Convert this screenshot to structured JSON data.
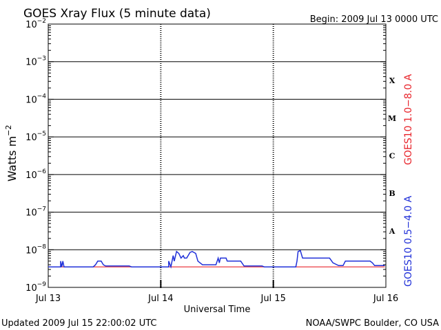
{
  "chart_data": {
    "type": "line",
    "title": "GOES Xray Flux (5 minute data)",
    "begin_text": "Begin:  2009 Jul 13 0000 UTC",
    "xlabel": "Universal Time",
    "ylabel": "Watts m",
    "ylabel_sup": "−2",
    "yscale": "log",
    "ylim": [
      1e-09,
      0.01
    ],
    "xlim_days": [
      0,
      3
    ],
    "x_ticks": [
      {
        "label": "Jul 13",
        "day": 0
      },
      {
        "label": "Jul 14",
        "day": 1
      },
      {
        "label": "Jul 15",
        "day": 2
      },
      {
        "label": "Jul 16",
        "day": 3
      }
    ],
    "y_ticks": [
      {
        "base": "10",
        "exp": "−9",
        "value": 1e-09
      },
      {
        "base": "10",
        "exp": "−8",
        "value": 1e-08
      },
      {
        "base": "10",
        "exp": "−7",
        "value": 1e-07
      },
      {
        "base": "10",
        "exp": "−6",
        "value": 1e-06
      },
      {
        "base": "10",
        "exp": "−5",
        "value": 1e-05
      },
      {
        "base": "10",
        "exp": "−4",
        "value": 0.0001
      },
      {
        "base": "10",
        "exp": "−3",
        "value": 0.001
      },
      {
        "base": "10",
        "exp": "−2",
        "value": 0.01
      }
    ],
    "flare_classes": [
      {
        "label": "A",
        "low": 1e-08,
        "high": 1e-07
      },
      {
        "label": "B",
        "low": 1e-07,
        "high": 1e-06
      },
      {
        "label": "C",
        "low": 1e-06,
        "high": 1e-05
      },
      {
        "label": "M",
        "low": 1e-05,
        "high": 0.0001
      },
      {
        "label": "X",
        "low": 0.0001,
        "high": 0.001
      }
    ],
    "series": [
      {
        "name": "GOES10 1.0−8.0 A",
        "color": "#e8242b",
        "points": [
          [
            0.0,
            3.5e-09
          ],
          [
            2.99,
            3.5e-09
          ]
        ]
      },
      {
        "name": "GOES10 0.5−4.0 A",
        "color": "#1f2fd8",
        "points": [
          [
            0.0,
            3.5e-09
          ],
          [
            0.11,
            3.5e-09
          ],
          [
            0.11,
            5e-09
          ],
          [
            0.12,
            3.5e-09
          ],
          [
            0.13,
            5e-09
          ],
          [
            0.14,
            3.5e-09
          ],
          [
            0.4,
            3.5e-09
          ],
          [
            0.42,
            4e-09
          ],
          [
            0.44,
            5e-09
          ],
          [
            0.47,
            5e-09
          ],
          [
            0.49,
            4e-09
          ],
          [
            0.51,
            3.7e-09
          ],
          [
            0.72,
            3.7e-09
          ],
          [
            0.74,
            3.5e-09
          ],
          [
            1.04,
            3.5e-09
          ],
          [
            1.07,
            3.5e-09
          ],
          [
            1.07,
            5e-09
          ],
          [
            1.09,
            3.5e-09
          ],
          [
            1.11,
            7e-09
          ],
          [
            1.12,
            5e-09
          ],
          [
            1.14,
            9e-09
          ],
          [
            1.16,
            8e-09
          ],
          [
            1.18,
            6e-09
          ],
          [
            1.2,
            7e-09
          ],
          [
            1.21,
            6e-09
          ],
          [
            1.23,
            6e-09
          ],
          [
            1.26,
            8.5e-09
          ],
          [
            1.28,
            9e-09
          ],
          [
            1.31,
            8e-09
          ],
          [
            1.33,
            5e-09
          ],
          [
            1.37,
            4e-09
          ],
          [
            1.49,
            4e-09
          ],
          [
            1.51,
            6e-09
          ],
          [
            1.52,
            4.5e-09
          ],
          [
            1.53,
            6e-09
          ],
          [
            1.58,
            6e-09
          ],
          [
            1.59,
            5e-09
          ],
          [
            1.71,
            5e-09
          ],
          [
            1.74,
            3.7e-09
          ],
          [
            1.9,
            3.7e-09
          ],
          [
            1.92,
            3.5e-09
          ],
          [
            2.2,
            3.5e-09
          ],
          [
            2.21,
            5e-09
          ],
          [
            2.22,
            9e-09
          ],
          [
            2.24,
            9.5e-09
          ],
          [
            2.26,
            6e-09
          ],
          [
            2.5,
            6e-09
          ],
          [
            2.53,
            4.5e-09
          ],
          [
            2.58,
            3.8e-09
          ],
          [
            2.62,
            3.8e-09
          ],
          [
            2.64,
            5e-09
          ],
          [
            2.86,
            5e-09
          ],
          [
            2.88,
            4.5e-09
          ],
          [
            2.9,
            3.8e-09
          ],
          [
            2.99,
            3.8e-09
          ]
        ]
      }
    ],
    "grid": true,
    "legend_placement": "right, vertical"
  },
  "footer": {
    "updated": "Updated 2009 Jul 15 22:00:02 UTC",
    "credit": "NOAA/SWPC Boulder, CO USA"
  }
}
